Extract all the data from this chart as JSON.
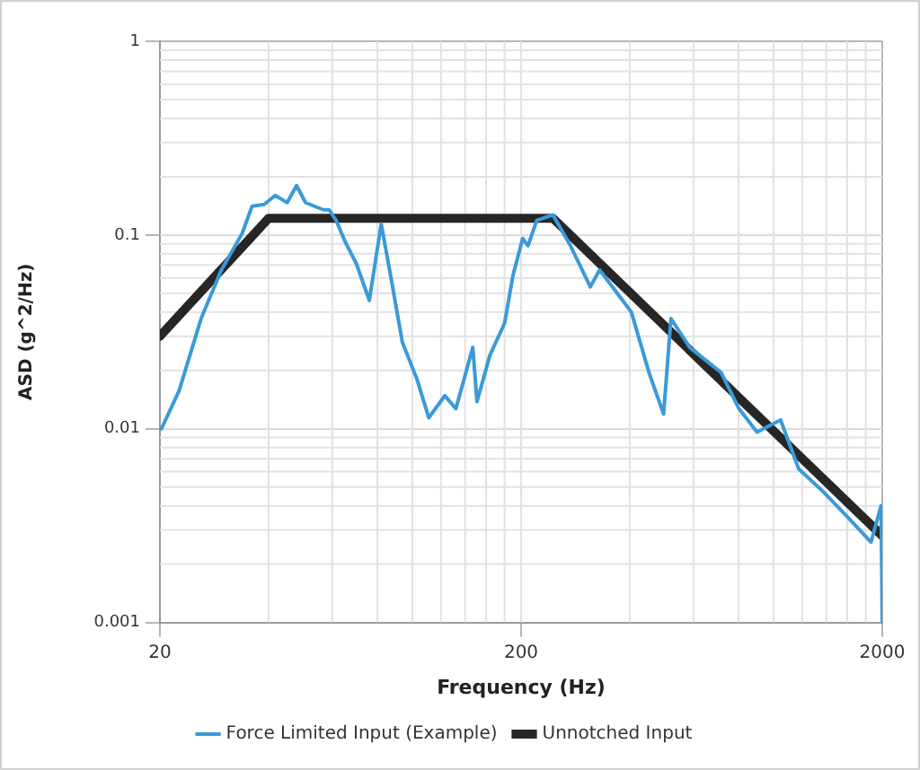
{
  "chart_data": {
    "type": "line",
    "xlabel": "Frequency (Hz)",
    "ylabel": "ASD (g^2/Hz)",
    "log": "xy",
    "grid": true,
    "legend": "bottom",
    "marker": "none",
    "line_style": "solid",
    "xlim": [
      20,
      2000
    ],
    "xticks": [
      20,
      200,
      2000
    ],
    "ylim": [
      0.001,
      1
    ],
    "yticks": [
      0.001,
      0.01,
      0.1,
      1
    ],
    "series": [
      {
        "name": "Force Limited Input (Example)",
        "color": "#3a9ad9",
        "x": [
          20.2,
          22.6,
          26,
          29.6,
          33.8,
          36,
          38.9,
          41.7,
          45,
          47.8,
          50.6,
          56.7,
          58.8,
          61.5,
          65.2,
          70,
          76,
          78.8,
          82,
          87,
          93.8,
          103,
          111,
          123,
          132,
          147,
          151,
          164,
          180,
          190,
          202,
          209,
          221,
          245,
          274,
          311,
          330,
          404,
          452,
          496,
          520,
          586,
          716,
          802,
          900,
          1046,
          1174,
          1378,
          1603,
          1862,
          1985,
          2000
        ],
        "values": [
          0.01,
          0.0157,
          0.037,
          0.066,
          0.102,
          0.141,
          0.144,
          0.16,
          0.147,
          0.18,
          0.147,
          0.135,
          0.135,
          0.119,
          0.092,
          0.071,
          0.046,
          0.071,
          0.114,
          0.062,
          0.028,
          0.018,
          0.0114,
          0.0148,
          0.0127,
          0.0263,
          0.0138,
          0.024,
          0.035,
          0.062,
          0.096,
          0.088,
          0.119,
          0.127,
          0.088,
          0.054,
          0.066,
          0.04,
          0.0195,
          0.0119,
          0.037,
          0.0263,
          0.0195,
          0.0127,
          0.0096,
          0.0111,
          0.0062,
          0.0047,
          0.0035,
          0.0026,
          0.004,
          0.001
        ]
      },
      {
        "name": "Unnotched Input",
        "color": "#262626",
        "x": [
          20,
          40,
          245,
          2000
        ],
        "values": [
          0.03,
          0.122,
          0.122,
          0.0028
        ]
      }
    ]
  }
}
